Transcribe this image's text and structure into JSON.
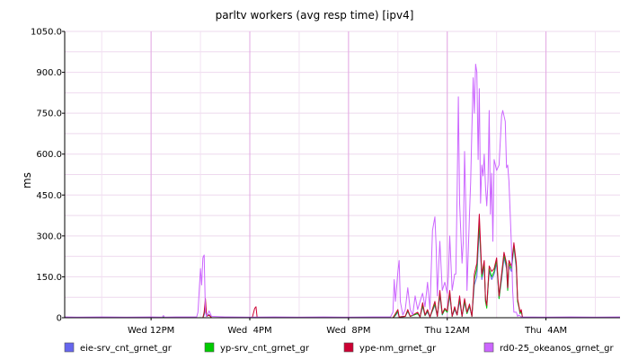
{
  "chart_data": {
    "type": "line",
    "title": "parltv workers (avg resp time) [ipv4]",
    "ylabel": "ms",
    "xlabel": "",
    "ylim": [
      0,
      1050
    ],
    "y_ticks": [
      {
        "value": 0,
        "label": "0"
      },
      {
        "value": 150,
        "label": "150.0"
      },
      {
        "value": 300,
        "label": "300.0"
      },
      {
        "value": 450,
        "label": "450.0"
      },
      {
        "value": 600,
        "label": "600.0"
      },
      {
        "value": 750,
        "label": "750.0"
      },
      {
        "value": 900,
        "label": "900.0"
      },
      {
        "value": 1050,
        "label": "1050.0"
      }
    ],
    "xlim": [
      8.5,
      31.0
    ],
    "x_ticks": [
      {
        "value": 12,
        "label": "Wed 12PM"
      },
      {
        "value": 16,
        "label": "Wed  4PM"
      },
      {
        "value": 20,
        "label": "Wed  8PM"
      },
      {
        "value": 24,
        "label": "Thu 12AM"
      },
      {
        "value": 28,
        "label": "Thu  4AM"
      }
    ],
    "grid": true,
    "legend_position": "bottom",
    "series": [
      {
        "name": "eie-srv_cnt_grnet_gr",
        "color": "#6666ee",
        "points": [
          [
            8.5,
            0
          ],
          [
            12.4,
            0
          ],
          [
            12.5,
            2
          ],
          [
            12.6,
            0
          ],
          [
            14.1,
            0
          ],
          [
            14.15,
            10
          ],
          [
            14.2,
            40
          ],
          [
            14.25,
            5
          ],
          [
            14.35,
            12
          ],
          [
            14.45,
            0
          ],
          [
            21.8,
            0
          ],
          [
            21.9,
            8
          ],
          [
            22.0,
            20
          ],
          [
            22.05,
            3
          ],
          [
            22.3,
            5
          ],
          [
            22.4,
            22
          ],
          [
            22.5,
            5
          ],
          [
            22.8,
            15
          ],
          [
            22.9,
            3
          ],
          [
            23.0,
            40
          ],
          [
            23.1,
            8
          ],
          [
            23.2,
            20
          ],
          [
            23.3,
            3
          ],
          [
            23.5,
            45
          ],
          [
            23.6,
            5
          ],
          [
            23.7,
            80
          ],
          [
            23.8,
            10
          ],
          [
            23.9,
            30
          ],
          [
            24.0,
            20
          ],
          [
            24.1,
            80
          ],
          [
            24.2,
            5
          ],
          [
            24.3,
            30
          ],
          [
            24.4,
            10
          ],
          [
            24.5,
            60
          ],
          [
            24.6,
            5
          ],
          [
            24.7,
            55
          ],
          [
            24.8,
            15
          ],
          [
            24.9,
            40
          ],
          [
            25.0,
            5
          ],
          [
            25.1,
            120
          ],
          [
            25.2,
            150
          ],
          [
            25.3,
            330
          ],
          [
            25.4,
            140
          ],
          [
            25.5,
            190
          ],
          [
            25.55,
            60
          ],
          [
            25.6,
            40
          ],
          [
            25.7,
            170
          ],
          [
            25.8,
            140
          ],
          [
            25.9,
            160
          ],
          [
            26.0,
            200
          ],
          [
            26.1,
            70
          ],
          [
            26.2,
            140
          ],
          [
            26.3,
            220
          ],
          [
            26.4,
            180
          ],
          [
            26.45,
            100
          ],
          [
            26.5,
            190
          ],
          [
            26.6,
            170
          ],
          [
            26.7,
            260
          ],
          [
            26.8,
            180
          ],
          [
            26.85,
            60
          ],
          [
            26.9,
            40
          ],
          [
            26.95,
            15
          ],
          [
            27.0,
            25
          ],
          [
            27.05,
            0
          ],
          [
            31.0,
            0
          ]
        ]
      },
      {
        "name": "yp-srv_cnt_grnet_gr",
        "color": "#00cc00",
        "points": [
          [
            8.5,
            0
          ],
          [
            12.4,
            0
          ],
          [
            12.5,
            2
          ],
          [
            12.6,
            0
          ],
          [
            14.1,
            0
          ],
          [
            14.15,
            15
          ],
          [
            14.2,
            55
          ],
          [
            14.25,
            5
          ],
          [
            14.35,
            10
          ],
          [
            14.45,
            0
          ],
          [
            21.8,
            0
          ],
          [
            21.9,
            10
          ],
          [
            22.0,
            25
          ],
          [
            22.05,
            3
          ],
          [
            22.3,
            5
          ],
          [
            22.4,
            25
          ],
          [
            22.5,
            5
          ],
          [
            22.8,
            15
          ],
          [
            22.9,
            3
          ],
          [
            23.0,
            45
          ],
          [
            23.1,
            8
          ],
          [
            23.2,
            25
          ],
          [
            23.3,
            3
          ],
          [
            23.5,
            50
          ],
          [
            23.6,
            5
          ],
          [
            23.7,
            90
          ],
          [
            23.8,
            12
          ],
          [
            23.9,
            30
          ],
          [
            24.0,
            20
          ],
          [
            24.1,
            90
          ],
          [
            24.2,
            5
          ],
          [
            24.3,
            35
          ],
          [
            24.4,
            10
          ],
          [
            24.5,
            70
          ],
          [
            24.6,
            5
          ],
          [
            24.7,
            60
          ],
          [
            24.8,
            15
          ],
          [
            24.9,
            45
          ],
          [
            25.0,
            5
          ],
          [
            25.1,
            140
          ],
          [
            25.2,
            180
          ],
          [
            25.3,
            350
          ],
          [
            25.4,
            150
          ],
          [
            25.5,
            200
          ],
          [
            25.55,
            60
          ],
          [
            25.6,
            35
          ],
          [
            25.7,
            180
          ],
          [
            25.8,
            150
          ],
          [
            25.9,
            170
          ],
          [
            26.0,
            210
          ],
          [
            26.1,
            70
          ],
          [
            26.2,
            150
          ],
          [
            26.3,
            230
          ],
          [
            26.4,
            190
          ],
          [
            26.45,
            100
          ],
          [
            26.5,
            200
          ],
          [
            26.6,
            180
          ],
          [
            26.7,
            265
          ],
          [
            26.8,
            190
          ],
          [
            26.85,
            60
          ],
          [
            26.9,
            40
          ],
          [
            26.95,
            15
          ],
          [
            27.0,
            25
          ],
          [
            27.05,
            0
          ],
          [
            31.0,
            0
          ]
        ]
      },
      {
        "name": "ype-nm_grnet_gr",
        "color": "#cc0033",
        "points": [
          [
            8.5,
            0
          ],
          [
            14.1,
            0
          ],
          [
            14.15,
            20
          ],
          [
            14.2,
            70
          ],
          [
            14.25,
            5
          ],
          [
            14.35,
            10
          ],
          [
            14.45,
            0
          ],
          [
            16.1,
            0
          ],
          [
            16.2,
            35
          ],
          [
            16.25,
            40
          ],
          [
            16.3,
            0
          ],
          [
            21.8,
            0
          ],
          [
            21.9,
            15
          ],
          [
            22.0,
            30
          ],
          [
            22.05,
            3
          ],
          [
            22.3,
            5
          ],
          [
            22.4,
            30
          ],
          [
            22.5,
            5
          ],
          [
            22.8,
            20
          ],
          [
            22.9,
            3
          ],
          [
            23.0,
            55
          ],
          [
            23.1,
            10
          ],
          [
            23.2,
            30
          ],
          [
            23.3,
            3
          ],
          [
            23.5,
            60
          ],
          [
            23.6,
            5
          ],
          [
            23.7,
            100
          ],
          [
            23.8,
            15
          ],
          [
            23.9,
            35
          ],
          [
            24.0,
            25
          ],
          [
            24.1,
            100
          ],
          [
            24.2,
            5
          ],
          [
            24.3,
            40
          ],
          [
            24.4,
            10
          ],
          [
            24.5,
            80
          ],
          [
            24.6,
            5
          ],
          [
            24.7,
            70
          ],
          [
            24.8,
            20
          ],
          [
            24.9,
            50
          ],
          [
            25.0,
            5
          ],
          [
            25.1,
            160
          ],
          [
            25.2,
            200
          ],
          [
            25.3,
            380
          ],
          [
            25.4,
            160
          ],
          [
            25.5,
            210
          ],
          [
            25.55,
            70
          ],
          [
            25.6,
            45
          ],
          [
            25.7,
            190
          ],
          [
            25.8,
            170
          ],
          [
            25.9,
            180
          ],
          [
            26.0,
            220
          ],
          [
            26.1,
            80
          ],
          [
            26.2,
            160
          ],
          [
            26.3,
            240
          ],
          [
            26.4,
            200
          ],
          [
            26.45,
            110
          ],
          [
            26.5,
            210
          ],
          [
            26.6,
            190
          ],
          [
            26.7,
            275
          ],
          [
            26.8,
            200
          ],
          [
            26.85,
            70
          ],
          [
            26.9,
            45
          ],
          [
            26.95,
            20
          ],
          [
            27.0,
            30
          ],
          [
            27.05,
            0
          ],
          [
            31.0,
            0
          ]
        ]
      },
      {
        "name": "rd0-25_okeanos_grnet_gr",
        "color": "#cc66ff",
        "points": [
          [
            8.5,
            3
          ],
          [
            9.0,
            2
          ],
          [
            10.0,
            3
          ],
          [
            11.0,
            2
          ],
          [
            12.0,
            3
          ],
          [
            12.45,
            2
          ],
          [
            12.5,
            8
          ],
          [
            12.55,
            2
          ],
          [
            13.0,
            3
          ],
          [
            13.85,
            3
          ],
          [
            13.9,
            20
          ],
          [
            13.95,
            100
          ],
          [
            14.0,
            180
          ],
          [
            14.05,
            120
          ],
          [
            14.1,
            220
          ],
          [
            14.15,
            230
          ],
          [
            14.2,
            20
          ],
          [
            14.25,
            5
          ],
          [
            14.35,
            25
          ],
          [
            14.45,
            5
          ],
          [
            15.0,
            3
          ],
          [
            16.0,
            2
          ],
          [
            17.0,
            3
          ],
          [
            18.0,
            2
          ],
          [
            19.0,
            3
          ],
          [
            20.0,
            2
          ],
          [
            21.0,
            3
          ],
          [
            21.7,
            3
          ],
          [
            21.8,
            20
          ],
          [
            21.85,
            140
          ],
          [
            21.9,
            60
          ],
          [
            22.0,
            170
          ],
          [
            22.05,
            210
          ],
          [
            22.1,
            60
          ],
          [
            22.2,
            10
          ],
          [
            22.3,
            30
          ],
          [
            22.4,
            110
          ],
          [
            22.5,
            30
          ],
          [
            22.6,
            10
          ],
          [
            22.7,
            80
          ],
          [
            22.8,
            30
          ],
          [
            22.9,
            60
          ],
          [
            23.0,
            90
          ],
          [
            23.1,
            40
          ],
          [
            23.2,
            130
          ],
          [
            23.3,
            30
          ],
          [
            23.4,
            320
          ],
          [
            23.5,
            370
          ],
          [
            23.55,
            260
          ],
          [
            23.6,
            80
          ],
          [
            23.7,
            280
          ],
          [
            23.8,
            100
          ],
          [
            23.9,
            130
          ],
          [
            24.0,
            90
          ],
          [
            24.05,
            160
          ],
          [
            24.1,
            300
          ],
          [
            24.2,
            100
          ],
          [
            24.3,
            160
          ],
          [
            24.35,
            160
          ],
          [
            24.4,
            450
          ],
          [
            24.45,
            810
          ],
          [
            24.5,
            420
          ],
          [
            24.6,
            200
          ],
          [
            24.65,
            280
          ],
          [
            24.7,
            610
          ],
          [
            24.75,
            420
          ],
          [
            24.8,
            100
          ],
          [
            24.9,
            380
          ],
          [
            24.95,
            500
          ],
          [
            25.0,
            700
          ],
          [
            25.05,
            880
          ],
          [
            25.1,
            750
          ],
          [
            25.15,
            930
          ],
          [
            25.2,
            900
          ],
          [
            25.25,
            580
          ],
          [
            25.3,
            840
          ],
          [
            25.35,
            420
          ],
          [
            25.4,
            560
          ],
          [
            25.45,
            520
          ],
          [
            25.5,
            600
          ],
          [
            25.55,
            480
          ],
          [
            25.6,
            410
          ],
          [
            25.65,
            500
          ],
          [
            25.7,
            760
          ],
          [
            25.75,
            380
          ],
          [
            25.8,
            530
          ],
          [
            25.85,
            280
          ],
          [
            25.9,
            580
          ],
          [
            26.0,
            540
          ],
          [
            26.05,
            550
          ],
          [
            26.1,
            560
          ],
          [
            26.2,
            740
          ],
          [
            26.25,
            760
          ],
          [
            26.3,
            740
          ],
          [
            26.35,
            720
          ],
          [
            26.4,
            550
          ],
          [
            26.45,
            560
          ],
          [
            26.5,
            500
          ],
          [
            26.6,
            270
          ],
          [
            26.65,
            100
          ],
          [
            26.7,
            20
          ],
          [
            26.8,
            20
          ],
          [
            26.85,
            5
          ],
          [
            26.9,
            10
          ],
          [
            27.0,
            3
          ],
          [
            28.0,
            2
          ],
          [
            29.0,
            3
          ],
          [
            30.0,
            2
          ],
          [
            31.0,
            3
          ]
        ]
      }
    ]
  }
}
